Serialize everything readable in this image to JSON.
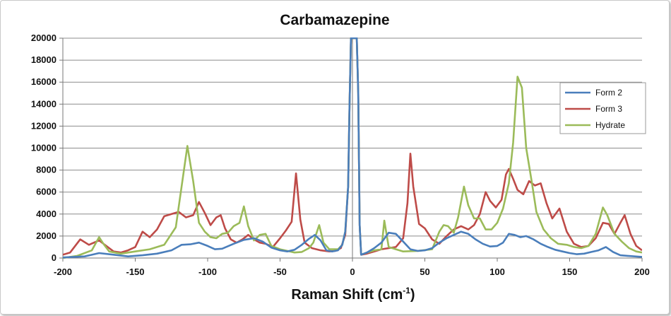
{
  "chart_data": {
    "type": "line",
    "title": "Carbamazepine",
    "xlabel": "Raman Shift (cm",
    "xlabel_sup": "-1",
    "xlabel_close": ")",
    "ylabel": "",
    "xlim": [
      -200,
      200
    ],
    "ylim": [
      0,
      20000
    ],
    "xticks": [
      -200,
      -150,
      -100,
      -50,
      0,
      50,
      100,
      150,
      200
    ],
    "yticks": [
      0,
      2000,
      4000,
      6000,
      8000,
      10000,
      12000,
      14000,
      16000,
      18000,
      20000
    ],
    "grid": "horizontal",
    "legend_position": "right",
    "series": [
      {
        "name": "Form 2",
        "color": "#4a7ebb",
        "points": [
          [
            -200,
            50
          ],
          [
            -185,
            150
          ],
          [
            -175,
            450
          ],
          [
            -165,
            300
          ],
          [
            -155,
            150
          ],
          [
            -145,
            250
          ],
          [
            -135,
            400
          ],
          [
            -125,
            700
          ],
          [
            -118,
            1200
          ],
          [
            -112,
            1250
          ],
          [
            -106,
            1400
          ],
          [
            -100,
            1100
          ],
          [
            -95,
            800
          ],
          [
            -90,
            850
          ],
          [
            -82,
            1300
          ],
          [
            -75,
            1650
          ],
          [
            -68,
            1800
          ],
          [
            -62,
            1500
          ],
          [
            -56,
            950
          ],
          [
            -50,
            700
          ],
          [
            -45,
            600
          ],
          [
            -40,
            750
          ],
          [
            -35,
            1200
          ],
          [
            -30,
            1750
          ],
          [
            -26,
            2100
          ],
          [
            -22,
            1600
          ],
          [
            -18,
            700
          ],
          [
            -14,
            600
          ],
          [
            -10,
            700
          ],
          [
            -7,
            1200
          ],
          [
            -5,
            2400
          ],
          [
            -3,
            6500
          ],
          [
            -2,
            14000
          ],
          [
            -1,
            20000
          ],
          [
            0,
            20000
          ],
          [
            1,
            20000
          ],
          [
            2,
            20000
          ],
          [
            3,
            20000
          ],
          [
            4,
            15000
          ],
          [
            5,
            3000
          ],
          [
            6,
            300
          ],
          [
            10,
            500
          ],
          [
            15,
            900
          ],
          [
            20,
            1400
          ],
          [
            25,
            2300
          ],
          [
            30,
            2200
          ],
          [
            35,
            1500
          ],
          [
            40,
            800
          ],
          [
            45,
            650
          ],
          [
            50,
            700
          ],
          [
            55,
            900
          ],
          [
            60,
            1400
          ],
          [
            65,
            1800
          ],
          [
            70,
            2100
          ],
          [
            75,
            2400
          ],
          [
            80,
            2200
          ],
          [
            85,
            1700
          ],
          [
            90,
            1300
          ],
          [
            95,
            1050
          ],
          [
            100,
            1100
          ],
          [
            104,
            1400
          ],
          [
            108,
            2200
          ],
          [
            112,
            2100
          ],
          [
            116,
            1900
          ],
          [
            120,
            2000
          ],
          [
            125,
            1700
          ],
          [
            130,
            1300
          ],
          [
            135,
            1000
          ],
          [
            140,
            750
          ],
          [
            145,
            600
          ],
          [
            150,
            450
          ],
          [
            155,
            350
          ],
          [
            160,
            400
          ],
          [
            165,
            550
          ],
          [
            170,
            700
          ],
          [
            175,
            1000
          ],
          [
            180,
            550
          ],
          [
            185,
            250
          ],
          [
            190,
            200
          ],
          [
            195,
            150
          ],
          [
            200,
            100
          ]
        ]
      },
      {
        "name": "Form 3",
        "color": "#be4b48",
        "points": [
          [
            -200,
            300
          ],
          [
            -195,
            500
          ],
          [
            -188,
            1700
          ],
          [
            -182,
            1200
          ],
          [
            -175,
            1600
          ],
          [
            -170,
            1100
          ],
          [
            -165,
            600
          ],
          [
            -160,
            500
          ],
          [
            -155,
            700
          ],
          [
            -150,
            1000
          ],
          [
            -145,
            2400
          ],
          [
            -140,
            1900
          ],
          [
            -135,
            2600
          ],
          [
            -130,
            3800
          ],
          [
            -125,
            4000
          ],
          [
            -120,
            4200
          ],
          [
            -115,
            3700
          ],
          [
            -110,
            3900
          ],
          [
            -106,
            5100
          ],
          [
            -102,
            4100
          ],
          [
            -98,
            3000
          ],
          [
            -94,
            3700
          ],
          [
            -91,
            3900
          ],
          [
            -88,
            2700
          ],
          [
            -84,
            1700
          ],
          [
            -80,
            1400
          ],
          [
            -76,
            1700
          ],
          [
            -72,
            2100
          ],
          [
            -68,
            1700
          ],
          [
            -64,
            1400
          ],
          [
            -60,
            1300
          ],
          [
            -55,
            1000
          ],
          [
            -50,
            1800
          ],
          [
            -46,
            2500
          ],
          [
            -42,
            3300
          ],
          [
            -39,
            7700
          ],
          [
            -36,
            3500
          ],
          [
            -33,
            1400
          ],
          [
            -28,
            900
          ],
          [
            -22,
            700
          ],
          [
            -16,
            600
          ],
          [
            -12,
            650
          ],
          [
            -8,
            900
          ],
          [
            -5,
            2100
          ],
          [
            -3,
            6500
          ],
          [
            -2,
            14000
          ],
          [
            -1,
            20000
          ],
          [
            0,
            20000
          ],
          [
            1,
            20000
          ],
          [
            2,
            20000
          ],
          [
            3,
            20000
          ],
          [
            4,
            15000
          ],
          [
            5,
            3000
          ],
          [
            6,
            300
          ],
          [
            10,
            400
          ],
          [
            15,
            600
          ],
          [
            20,
            800
          ],
          [
            25,
            900
          ],
          [
            30,
            1000
          ],
          [
            35,
            1800
          ],
          [
            38,
            5000
          ],
          [
            40,
            9500
          ],
          [
            42,
            6500
          ],
          [
            46,
            3100
          ],
          [
            50,
            2700
          ],
          [
            55,
            1700
          ],
          [
            60,
            1300
          ],
          [
            65,
            2000
          ],
          [
            70,
            2600
          ],
          [
            75,
            2900
          ],
          [
            80,
            2600
          ],
          [
            84,
            3000
          ],
          [
            88,
            4000
          ],
          [
            92,
            6000
          ],
          [
            95,
            5200
          ],
          [
            99,
            4600
          ],
          [
            103,
            5300
          ],
          [
            106,
            7600
          ],
          [
            108,
            8100
          ],
          [
            111,
            7200
          ],
          [
            114,
            6200
          ],
          [
            118,
            5800
          ],
          [
            122,
            7000
          ],
          [
            126,
            6600
          ],
          [
            130,
            6800
          ],
          [
            134,
            5000
          ],
          [
            138,
            3600
          ],
          [
            143,
            4500
          ],
          [
            148,
            2400
          ],
          [
            153,
            1300
          ],
          [
            158,
            1000
          ],
          [
            163,
            1100
          ],
          [
            168,
            1800
          ],
          [
            173,
            3200
          ],
          [
            177,
            3100
          ],
          [
            181,
            2200
          ],
          [
            185,
            3200
          ],
          [
            188,
            3900
          ],
          [
            192,
            2200
          ],
          [
            196,
            1100
          ],
          [
            200,
            700
          ]
        ]
      },
      {
        "name": "Hydrate",
        "color": "#9bbb59",
        "points": [
          [
            -200,
            0
          ],
          [
            -190,
            200
          ],
          [
            -180,
            700
          ],
          [
            -175,
            1900
          ],
          [
            -172,
            1300
          ],
          [
            -168,
            600
          ],
          [
            -160,
            400
          ],
          [
            -150,
            600
          ],
          [
            -140,
            800
          ],
          [
            -130,
            1200
          ],
          [
            -122,
            2800
          ],
          [
            -118,
            6500
          ],
          [
            -114,
            10200
          ],
          [
            -110,
            7000
          ],
          [
            -106,
            3200
          ],
          [
            -102,
            2400
          ],
          [
            -98,
            1900
          ],
          [
            -94,
            1800
          ],
          [
            -90,
            2200
          ],
          [
            -86,
            2300
          ],
          [
            -82,
            2900
          ],
          [
            -78,
            3200
          ],
          [
            -75,
            4700
          ],
          [
            -72,
            2900
          ],
          [
            -68,
            1600
          ],
          [
            -64,
            2100
          ],
          [
            -60,
            2200
          ],
          [
            -56,
            1100
          ],
          [
            -50,
            800
          ],
          [
            -45,
            650
          ],
          [
            -40,
            500
          ],
          [
            -35,
            550
          ],
          [
            -30,
            900
          ],
          [
            -27,
            1400
          ],
          [
            -23,
            3000
          ],
          [
            -20,
            1400
          ],
          [
            -16,
            800
          ],
          [
            -10,
            800
          ],
          [
            -7,
            1200
          ],
          [
            -5,
            2400
          ],
          [
            -3,
            6500
          ],
          [
            -2,
            14000
          ],
          [
            -1,
            20000
          ],
          [
            0,
            20000
          ],
          [
            1,
            20000
          ],
          [
            2,
            20000
          ],
          [
            3,
            20000
          ],
          [
            4,
            15000
          ],
          [
            5,
            3000
          ],
          [
            6,
            300
          ],
          [
            10,
            500
          ],
          [
            15,
            700
          ],
          [
            20,
            800
          ],
          [
            22,
            3400
          ],
          [
            25,
            1000
          ],
          [
            30,
            800
          ],
          [
            35,
            600
          ],
          [
            45,
            650
          ],
          [
            55,
            800
          ],
          [
            60,
            2400
          ],
          [
            63,
            3000
          ],
          [
            66,
            2900
          ],
          [
            70,
            2300
          ],
          [
            73,
            3700
          ],
          [
            77,
            6500
          ],
          [
            80,
            4800
          ],
          [
            84,
            3600
          ],
          [
            88,
            3600
          ],
          [
            92,
            2600
          ],
          [
            96,
            2600
          ],
          [
            100,
            3200
          ],
          [
            104,
            4500
          ],
          [
            108,
            6800
          ],
          [
            111,
            10500
          ],
          [
            114,
            16500
          ],
          [
            117,
            15500
          ],
          [
            120,
            10000
          ],
          [
            124,
            6800
          ],
          [
            127,
            4200
          ],
          [
            132,
            2600
          ],
          [
            137,
            1800
          ],
          [
            142,
            1300
          ],
          [
            148,
            1200
          ],
          [
            153,
            1000
          ],
          [
            158,
            900
          ],
          [
            163,
            1100
          ],
          [
            168,
            2200
          ],
          [
            173,
            4600
          ],
          [
            176,
            3900
          ],
          [
            181,
            2200
          ],
          [
            186,
            1500
          ],
          [
            191,
            900
          ],
          [
            196,
            600
          ],
          [
            200,
            500
          ]
        ]
      }
    ]
  }
}
